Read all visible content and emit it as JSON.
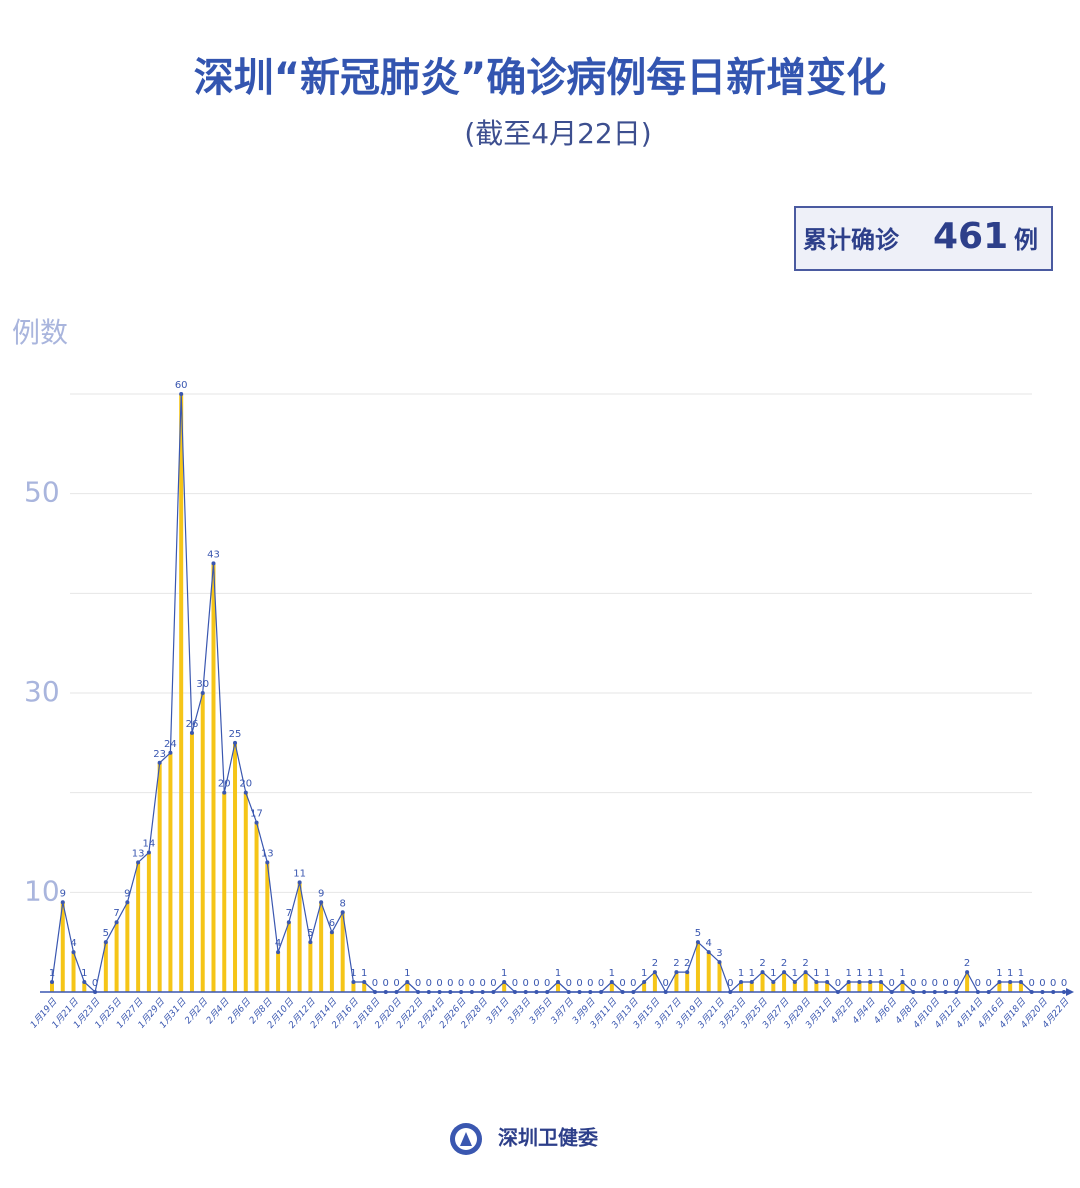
{
  "chart_data": {
    "type": "bar_line",
    "title": "深圳“新冠肺炎”确诊病例每日新增变化",
    "subtitle": "(截至4月22日)",
    "total_box": {
      "prefix": "累计确诊",
      "value": 461,
      "suffix": "例"
    },
    "y_label": "例数",
    "source": "深圳卫健委",
    "categories": [
      "1月19日",
      null,
      "1月21日",
      null,
      "1月23日",
      null,
      "1月25日",
      null,
      "1月27日",
      null,
      "1月29日",
      null,
      "1月31日",
      null,
      "2月2日",
      null,
      "2月4日",
      null,
      "2月6日",
      null,
      "2月8日",
      null,
      "2月10日",
      null,
      "2月12日",
      null,
      "2月14日",
      null,
      "2月16日",
      null,
      "2月18日",
      null,
      "2月20日",
      null,
      "2月22日",
      null,
      "2月24日",
      null,
      "2月26日",
      null,
      "2月28日",
      null,
      "3月1日",
      null,
      "3月3日",
      null,
      "3月5日",
      null,
      "3月7日",
      null,
      "3月9日",
      null,
      "3月11日",
      null,
      "3月13日",
      null,
      "3月15日",
      null,
      "3月17日",
      null,
      "3月19日",
      null,
      "3月21日",
      null,
      "3月23日",
      null,
      "3月25日",
      null,
      "3月27日",
      null,
      "3月29日",
      null,
      "3月31日",
      null,
      "4月2日",
      null,
      "4月4日",
      null,
      "4月6日",
      null,
      "4月8日",
      null,
      "4月10日",
      null,
      "4月12日",
      null,
      "4月14日",
      null,
      "4月16日",
      null,
      "4月18日",
      null,
      "4月20日",
      null,
      "4月22日"
    ],
    "values": [
      1,
      9,
      4,
      1,
      0,
      5,
      7,
      9,
      13,
      14,
      23,
      24,
      60,
      26,
      30,
      43,
      20,
      25,
      20,
      17,
      13,
      4,
      7,
      11,
      5,
      9,
      6,
      8,
      1,
      1,
      0,
      0,
      0,
      1,
      0,
      0,
      0,
      0,
      0,
      0,
      0,
      0,
      1,
      0,
      0,
      0,
      0,
      1,
      0,
      0,
      0,
      0,
      1,
      0,
      0,
      1,
      2,
      0,
      2,
      2,
      5,
      4,
      3,
      0,
      1,
      1,
      2,
      1,
      2,
      1,
      2,
      1,
      1,
      0,
      1,
      1,
      1,
      1,
      0,
      1,
      0,
      0,
      0,
      0,
      0,
      2,
      0,
      0,
      1,
      1,
      1,
      0,
      0,
      0,
      0
    ],
    "bar_color": "#f5c518",
    "line_color": "#3a57b0",
    "ylim": [
      0,
      60
    ],
    "yticks": [
      10,
      30,
      50
    ],
    "minor_grid": [
      20,
      40,
      60
    ],
    "grid": true
  }
}
